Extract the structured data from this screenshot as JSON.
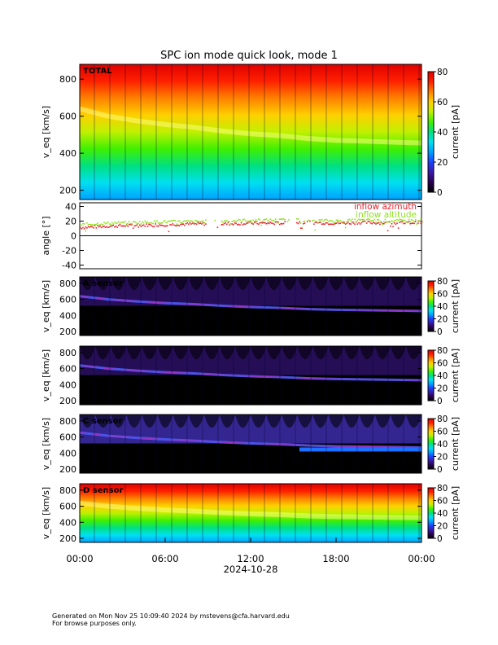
{
  "title": "SPC ion mode quick look, mode 1",
  "colors": {
    "inflow_azimuth": "#e8202a",
    "inflow_altitude": "#90e020",
    "colorbar_stops": [
      "#000000",
      "#2a0050",
      "#3a1aa8",
      "#2040ff",
      "#00a0ff",
      "#00e0f0",
      "#00e080",
      "#40f000",
      "#c0f000",
      "#ffd000",
      "#ff8000",
      "#ff2000",
      "#e00000"
    ]
  },
  "footer": {
    "line1": "Generated on Mon Nov 25 10:09:40 2024 by mstevens@cfa.harvard.edu",
    "line2": "For browse purposes only."
  },
  "chart_data": [
    {
      "type": "heatmap",
      "panel": "TOTAL",
      "label": "TOTAL",
      "ylabel": "v_eq [km/s]",
      "ylim": [
        150,
        880
      ],
      "yticks": [
        200,
        400,
        600,
        800
      ],
      "colorbar_label": "current [pA]",
      "clim": [
        0,
        80
      ],
      "colorbar_ticks": [
        0,
        20,
        40,
        60,
        80
      ],
      "solar_wind_speed_kms": [
        640,
        600,
        575,
        555,
        540,
        520,
        505,
        495,
        480,
        470,
        465,
        460,
        455
      ],
      "solar_wind_speed_times": [
        "00:00",
        "02:00",
        "04:00",
        "06:00",
        "08:00",
        "10:00",
        "12:00",
        "14:00",
        "16:00",
        "18:00",
        "20:00",
        "22:00",
        "00:00"
      ]
    },
    {
      "type": "line",
      "panel": "angle",
      "ylabel": "angle [°]",
      "ylim": [
        -45,
        45
      ],
      "yticks": [
        -40,
        -20,
        0,
        20,
        40
      ],
      "x": [
        "00:00",
        "02:00",
        "04:00",
        "06:00",
        "08:00",
        "10:00",
        "12:00",
        "14:00",
        "16:00",
        "18:00",
        "20:00",
        "22:00",
        "00:00"
      ],
      "series": [
        {
          "name": "inflow azimuth",
          "values": [
            12,
            14,
            15,
            16,
            17,
            17,
            18,
            18,
            19,
            18,
            19,
            18,
            19
          ]
        },
        {
          "name": "inflow altitude",
          "values": [
            16,
            18,
            19,
            20,
            20,
            21,
            22,
            22,
            22,
            21,
            22,
            21,
            22
          ]
        }
      ]
    },
    {
      "type": "heatmap",
      "panel": "A",
      "label": "A sensor",
      "ylabel": "v_eq [km/s]",
      "ylim": [
        150,
        880
      ],
      "yticks": [
        200,
        400,
        600,
        800
      ],
      "colorbar_label": "current [pA]",
      "clim": [
        0,
        80
      ],
      "colorbar_ticks": [
        0,
        20,
        40,
        60,
        80
      ]
    },
    {
      "type": "heatmap",
      "panel": "B",
      "label": "",
      "ylabel": "v_eq [km/s]",
      "ylim": [
        150,
        880
      ],
      "yticks": [
        200,
        400,
        600,
        800
      ],
      "colorbar_label": "current [pA]",
      "clim": [
        0,
        80
      ],
      "colorbar_ticks": [
        0,
        20,
        40,
        60,
        80
      ]
    },
    {
      "type": "heatmap",
      "panel": "C",
      "label": "C sensor",
      "ylabel": "v_eq [km/s]",
      "ylim": [
        150,
        880
      ],
      "yticks": [
        200,
        400,
        600,
        800
      ],
      "colorbar_label": "current [pA]",
      "clim": [
        0,
        80
      ],
      "colorbar_ticks": [
        0,
        20,
        40,
        60,
        80
      ]
    },
    {
      "type": "heatmap",
      "panel": "D",
      "label": "D sensor",
      "ylabel": "v_eq [km/s]",
      "ylim": [
        150,
        880
      ],
      "yticks": [
        200,
        400,
        600,
        800
      ],
      "colorbar_label": "current [pA]",
      "clim": [
        0,
        80
      ],
      "colorbar_ticks": [
        0,
        20,
        40,
        60,
        80
      ]
    }
  ],
  "x_axis": {
    "ticks": [
      "00:00",
      "06:00",
      "12:00",
      "18:00",
      "00:00"
    ],
    "date": "2024-10-28"
  }
}
